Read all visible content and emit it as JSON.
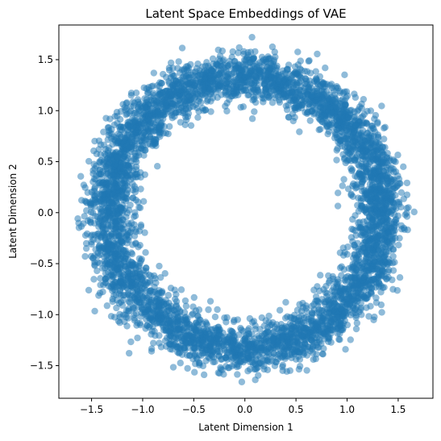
{
  "chart_data": {
    "type": "scatter",
    "title": "Latent Space Embeddings of VAE",
    "xlabel": "Latent Dimension 1",
    "ylabel": "Latent Dimension 2",
    "xlim": [
      -1.82,
      1.84
    ],
    "ylim": [
      -1.82,
      1.84
    ],
    "xticks": [
      -1.5,
      -1.0,
      -0.5,
      0.0,
      0.5,
      1.0,
      1.5
    ],
    "yticks": [
      -1.5,
      -1.0,
      -0.5,
      0.0,
      0.5,
      1.0,
      1.5
    ],
    "xtick_labels": [
      "−1.5",
      "−1.0",
      "−0.5",
      "0.0",
      "0.5",
      "1.0",
      "1.5"
    ],
    "ytick_labels": [
      "−1.5",
      "−1.0",
      "−0.5",
      "0.0",
      "0.5",
      "1.0",
      "1.5"
    ],
    "grid": false,
    "legend": "none",
    "marker_color": "#1f77b4",
    "marker_alpha": 0.5,
    "series": [
      {
        "shape": "noisy ring (annulus)",
        "approx_radius": 1.33,
        "radial_spread_sd": 0.12,
        "point_count_approx": 5000,
        "x": [
          0.0,
          0.33,
          0.66,
          0.94,
          1.15,
          1.29,
          1.33,
          1.29,
          1.15,
          0.94,
          0.66,
          0.33,
          0.0,
          -0.33,
          -0.66,
          -0.94,
          -1.15,
          -1.29,
          -1.33,
          -1.29,
          -1.15,
          -0.94,
          -0.66,
          -0.33,
          0.1,
          0.07,
          -1.55,
          -1.5,
          1.55,
          1.6,
          -0.03,
          0.37,
          -0.26,
          0.7
        ],
        "y": [
          1.33,
          1.29,
          1.15,
          0.94,
          0.66,
          0.33,
          0.0,
          -0.33,
          -0.66,
          -0.94,
          -1.15,
          -1.29,
          -1.33,
          -1.29,
          -1.15,
          -0.94,
          -0.66,
          -0.33,
          0.0,
          0.33,
          0.66,
          0.94,
          1.15,
          1.29,
          1.58,
          1.72,
          0.02,
          -0.31,
          0.45,
          0.05,
          -1.66,
          -1.55,
          -1.57,
          -1.3
        ]
      }
    ]
  }
}
